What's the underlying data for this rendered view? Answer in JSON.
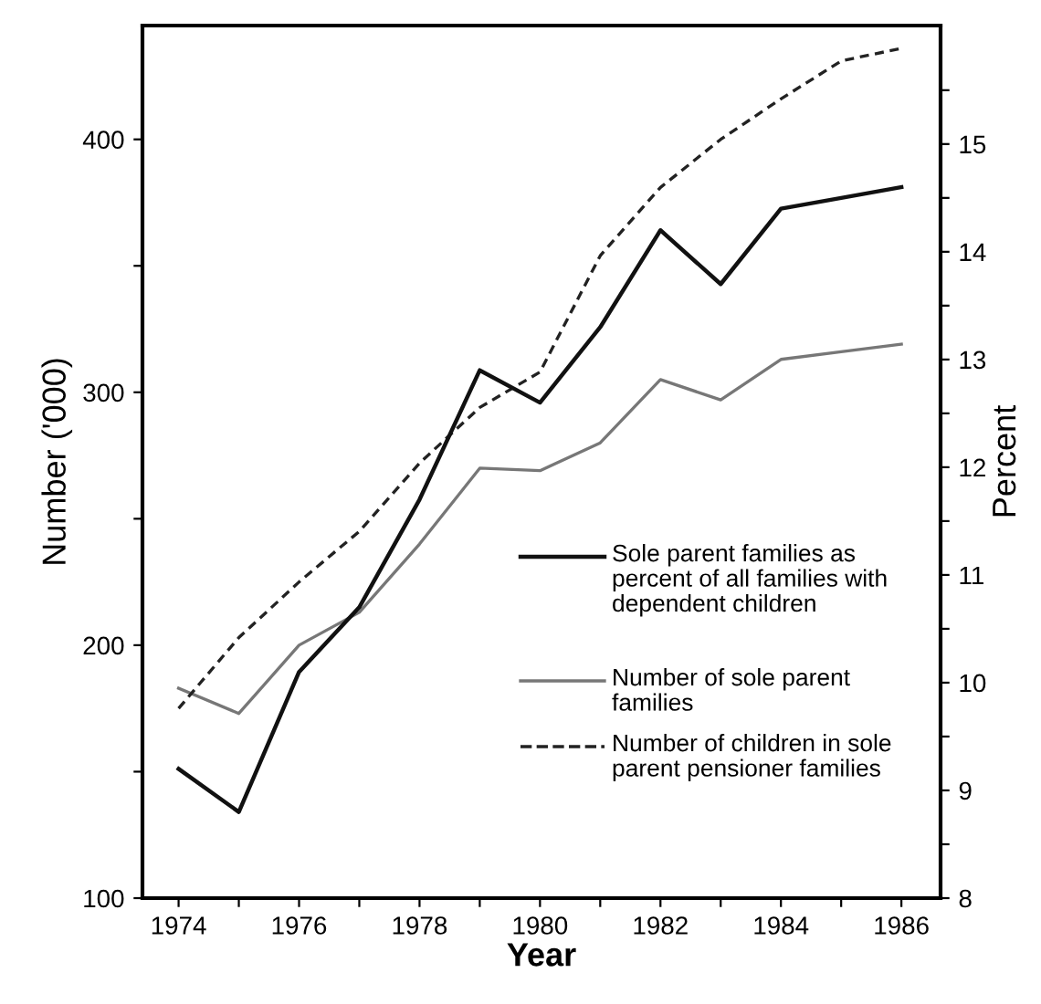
{
  "chart_data": {
    "type": "line",
    "xlabel": "Year",
    "ylabel": "Number ('000)",
    "y2label": "Percent",
    "x": [
      1974,
      1975,
      1976,
      1977,
      1978,
      1979,
      1980,
      1981,
      1982,
      1983,
      1984,
      1985,
      1986
    ],
    "series": [
      {
        "name": "Sole parent families as percent of all families with dependent children",
        "color": "#111111",
        "line_style": "solid",
        "axis": "y2",
        "values": [
          9.2,
          8.8,
          10.1,
          10.7,
          11.7,
          12.9,
          12.6,
          13.3,
          14.2,
          13.7,
          14.4,
          14.5,
          14.6
        ]
      },
      {
        "name": "Number of sole parent families",
        "color": "#777777",
        "line_style": "solid",
        "values": [
          183,
          173,
          200,
          213,
          240,
          270,
          269,
          280,
          305,
          297,
          313,
          316,
          319
        ]
      },
      {
        "name": "Number of children in sole parent pensioner families",
        "color": "#222222",
        "line_style": "dashed",
        "values": [
          175,
          203,
          225,
          245,
          272,
          294,
          308,
          354,
          381,
          400,
          416,
          431,
          436
        ]
      }
    ],
    "xlim": [
      1973.4,
      1986.65
    ],
    "xticks": [
      1974,
      {
        "value": 1975,
        "label": null
      },
      1976,
      {
        "value": 1977,
        "label": null
      },
      1978,
      {
        "value": 1979,
        "label": null
      },
      1980,
      {
        "value": 1981,
        "label": null
      },
      1982,
      {
        "value": 1983,
        "label": null
      },
      1984,
      {
        "value": 1985,
        "label": null
      },
      1986
    ],
    "ylim": [
      100,
      445
    ],
    "yticks": [
      100,
      {
        "value": 150,
        "label": null
      },
      200,
      {
        "value": 250,
        "label": null
      },
      300,
      {
        "value": 350,
        "label": null
      },
      400
    ],
    "y2lim": [
      8,
      16.1
    ],
    "y2ticks": [
      8,
      {
        "value": 8.5,
        "label": null
      },
      9,
      {
        "value": 9.5,
        "label": null
      },
      10,
      {
        "value": 10.5,
        "label": null
      },
      11,
      {
        "value": 11.5,
        "label": null
      },
      12,
      {
        "value": 12.5,
        "label": null
      },
      13,
      {
        "value": 13.5,
        "label": null
      },
      14,
      {
        "value": 14.5,
        "label": null
      },
      15,
      {
        "value": 15.5,
        "label": null
      }
    ],
    "legend": "bottom right",
    "grid": false
  }
}
